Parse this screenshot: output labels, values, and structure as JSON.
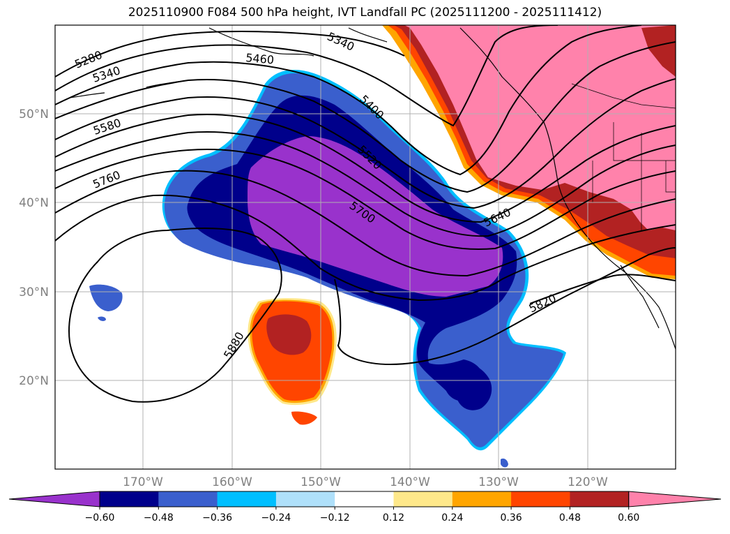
{
  "title": "2025110900 F084 500 hPa height, IVT Landfall PC (2025111200 - 2025111412)",
  "map": {
    "lat_labels": [
      "50°N",
      "40°N",
      "30°N",
      "20°N"
    ],
    "lon_labels": [
      "170°W",
      "160°W",
      "150°W",
      "140°W",
      "130°W",
      "120°W"
    ],
    "contour_labels": [
      "5280",
      "5340",
      "5340",
      "5460",
      "5400",
      "5580",
      "5520",
      "5760",
      "5700",
      "5640",
      "5820",
      "5880"
    ]
  },
  "colorbar": {
    "ticks": [
      "−0.60",
      "−0.48",
      "−0.36",
      "−0.24",
      "−0.12",
      "0.12",
      "0.24",
      "0.36",
      "0.48",
      "0.60"
    ],
    "colors": [
      "#9932cc",
      "#00008b",
      "#3a5fcd",
      "#00bfff",
      "#afe0fa",
      "#ffffff",
      "#fee88a",
      "#ffa500",
      "#ff4500",
      "#b22222",
      "#ff82ab"
    ]
  },
  "colors": {
    "ocean_negative_strong": "#9932cc",
    "negative_dark": "#00008b",
    "negative_mid": "#3a5fcd",
    "positive_mid": "#ff4500",
    "positive_high": "#b22222",
    "positive_max": "#ff82ab"
  }
}
